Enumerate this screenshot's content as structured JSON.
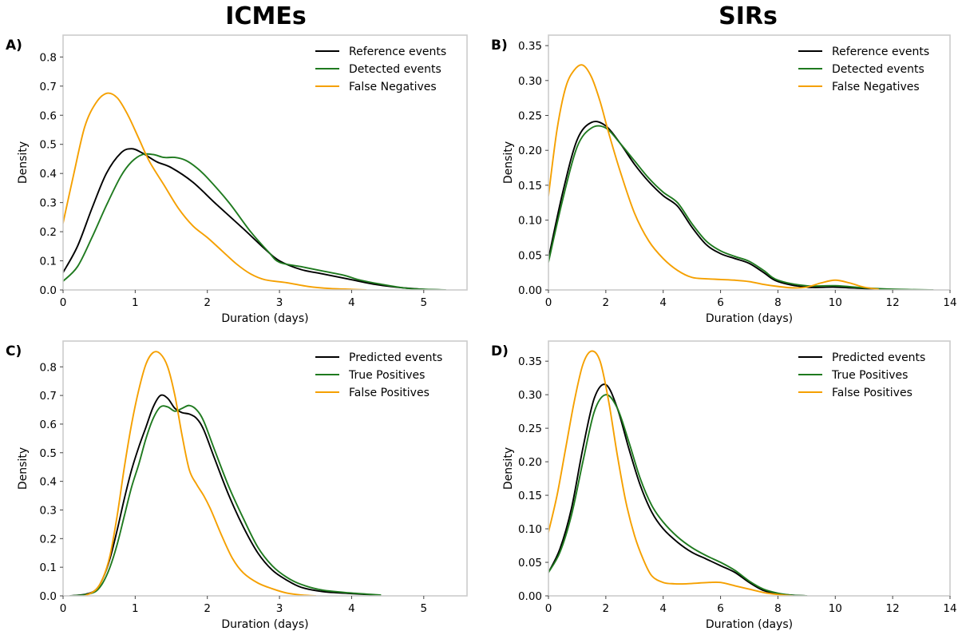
{
  "figure": {
    "column_titles": [
      "ICMEs",
      "SIRs"
    ]
  },
  "chart_data": [
    {
      "panel": "A)",
      "type": "line",
      "title": "",
      "xlabel": "Duration (days)",
      "ylabel": "Density",
      "xlim": [
        0,
        5.6
      ],
      "ylim": [
        0,
        0.875
      ],
      "xticks": [
        0,
        1,
        2,
        3,
        4,
        5
      ],
      "yticks": [
        0.0,
        0.1,
        0.2,
        0.3,
        0.4,
        0.5,
        0.6,
        0.7,
        0.8
      ],
      "ytick_decimals": 1,
      "legend_position": "top-right",
      "series": [
        {
          "name": "Reference events",
          "color": "#000000",
          "x": [
            0,
            0.2,
            0.4,
            0.6,
            0.8,
            0.95,
            1.1,
            1.3,
            1.5,
            1.8,
            2.1,
            2.5,
            2.8,
            3.0,
            3.3,
            3.6,
            4.0,
            4.3,
            4.6,
            5.0,
            5.3
          ],
          "y": [
            0.06,
            0.15,
            0.28,
            0.4,
            0.47,
            0.485,
            0.47,
            0.44,
            0.42,
            0.37,
            0.3,
            0.21,
            0.14,
            0.1,
            0.07,
            0.055,
            0.035,
            0.02,
            0.01,
            0.002,
            0.0
          ]
        },
        {
          "name": "Detected events",
          "color": "#1f7a1f",
          "x": [
            0,
            0.2,
            0.4,
            0.6,
            0.8,
            0.95,
            1.1,
            1.25,
            1.4,
            1.55,
            1.7,
            1.85,
            2.0,
            2.3,
            2.6,
            2.85,
            3.0,
            3.3,
            3.6,
            3.9,
            4.1,
            4.4,
            4.8,
            5.3
          ],
          "y": [
            0.03,
            0.08,
            0.18,
            0.29,
            0.39,
            0.44,
            0.465,
            0.465,
            0.455,
            0.455,
            0.445,
            0.42,
            0.385,
            0.3,
            0.2,
            0.13,
            0.095,
            0.08,
            0.065,
            0.05,
            0.035,
            0.02,
            0.005,
            0.0
          ]
        },
        {
          "name": "False Negatives",
          "color": "#f5a000",
          "x": [
            0,
            0.15,
            0.3,
            0.45,
            0.6,
            0.75,
            0.9,
            1.05,
            1.2,
            1.4,
            1.6,
            1.8,
            2.0,
            2.2,
            2.4,
            2.6,
            2.8,
            3.1,
            3.4,
            3.7,
            4.0,
            4.2
          ],
          "y": [
            0.23,
            0.4,
            0.56,
            0.64,
            0.675,
            0.66,
            0.6,
            0.52,
            0.44,
            0.36,
            0.28,
            0.22,
            0.18,
            0.135,
            0.09,
            0.055,
            0.035,
            0.025,
            0.012,
            0.005,
            0.002,
            0.0
          ]
        }
      ]
    },
    {
      "panel": "B)",
      "type": "line",
      "title": "",
      "xlabel": "Duration (days)",
      "ylabel": "Density",
      "xlim": [
        0,
        14
      ],
      "ylim": [
        0,
        0.365
      ],
      "xticks": [
        0,
        2,
        4,
        6,
        8,
        10,
        12,
        14
      ],
      "yticks": [
        0.0,
        0.05,
        0.1,
        0.15,
        0.2,
        0.25,
        0.3,
        0.35
      ],
      "ytick_decimals": 2,
      "legend_position": "top-right",
      "series": [
        {
          "name": "Reference events",
          "color": "#000000",
          "x": [
            0,
            0.5,
            1.0,
            1.5,
            2.0,
            2.5,
            3.0,
            3.5,
            4.0,
            4.5,
            5.0,
            5.5,
            6.0,
            6.5,
            7.0,
            7.5,
            8.0,
            9.0,
            10.0,
            11.0,
            12.0,
            13.4
          ],
          "y": [
            0.045,
            0.14,
            0.215,
            0.24,
            0.235,
            0.21,
            0.18,
            0.155,
            0.135,
            0.12,
            0.09,
            0.065,
            0.052,
            0.045,
            0.038,
            0.025,
            0.012,
            0.004,
            0.004,
            0.002,
            0.0,
            0.0
          ]
        },
        {
          "name": "Detected events",
          "color": "#1f7a1f",
          "x": [
            0,
            0.5,
            1.0,
            1.5,
            2.0,
            2.5,
            3.0,
            3.5,
            4.0,
            4.5,
            5.0,
            5.5,
            6.0,
            6.5,
            7.0,
            7.5,
            8.0,
            9.0,
            10.0,
            11.0,
            12.0,
            13.4
          ],
          "y": [
            0.04,
            0.13,
            0.205,
            0.232,
            0.232,
            0.21,
            0.185,
            0.16,
            0.14,
            0.125,
            0.095,
            0.07,
            0.056,
            0.048,
            0.041,
            0.028,
            0.014,
            0.006,
            0.006,
            0.003,
            0.001,
            0.0
          ]
        },
        {
          "name": "False Negatives",
          "color": "#f5a000",
          "x": [
            0,
            0.3,
            0.6,
            0.9,
            1.2,
            1.5,
            1.8,
            2.1,
            2.5,
            3.0,
            3.5,
            4.0,
            4.5,
            5.0,
            5.5,
            6.0,
            6.5,
            7.0,
            7.5,
            8.0,
            8.5,
            9.0,
            9.5,
            10.0,
            10.5,
            11.0,
            11.5
          ],
          "y": [
            0.135,
            0.23,
            0.29,
            0.315,
            0.322,
            0.305,
            0.27,
            0.225,
            0.17,
            0.11,
            0.07,
            0.045,
            0.028,
            0.018,
            0.016,
            0.015,
            0.014,
            0.012,
            0.008,
            0.005,
            0.003,
            0.004,
            0.01,
            0.014,
            0.01,
            0.004,
            0.001
          ]
        }
      ]
    },
    {
      "panel": "C)",
      "type": "line",
      "title": "",
      "xlabel": "Duration (days)",
      "ylabel": "Density",
      "xlim": [
        0,
        5.6
      ],
      "ylim": [
        0,
        0.89
      ],
      "xticks": [
        0,
        1,
        2,
        3,
        4,
        5
      ],
      "yticks": [
        0.0,
        0.1,
        0.2,
        0.3,
        0.4,
        0.5,
        0.6,
        0.7,
        0.8
      ],
      "ytick_decimals": 1,
      "legend_position": "top-right",
      "series": [
        {
          "name": "Predicted events",
          "color": "#000000",
          "x": [
            0.1,
            0.3,
            0.45,
            0.55,
            0.65,
            0.75,
            0.85,
            0.95,
            1.05,
            1.15,
            1.25,
            1.35,
            1.45,
            1.55,
            1.65,
            1.75,
            1.85,
            1.95,
            2.1,
            2.3,
            2.5,
            2.7,
            2.9,
            3.1,
            3.3,
            3.6,
            4.0,
            4.4
          ],
          "y": [
            0.0,
            0.005,
            0.02,
            0.06,
            0.13,
            0.23,
            0.34,
            0.44,
            0.52,
            0.59,
            0.66,
            0.7,
            0.69,
            0.655,
            0.64,
            0.635,
            0.62,
            0.58,
            0.48,
            0.35,
            0.24,
            0.15,
            0.09,
            0.055,
            0.03,
            0.015,
            0.008,
            0.002
          ]
        },
        {
          "name": "True Positives",
          "color": "#1f7a1f",
          "x": [
            0.1,
            0.3,
            0.45,
            0.55,
            0.65,
            0.75,
            0.85,
            0.95,
            1.05,
            1.15,
            1.25,
            1.35,
            1.45,
            1.55,
            1.65,
            1.75,
            1.85,
            1.95,
            2.1,
            2.3,
            2.5,
            2.7,
            2.9,
            3.1,
            3.3,
            3.6,
            4.0,
            4.4
          ],
          "y": [
            0.0,
            0.004,
            0.015,
            0.045,
            0.1,
            0.18,
            0.28,
            0.38,
            0.46,
            0.55,
            0.62,
            0.66,
            0.66,
            0.645,
            0.655,
            0.665,
            0.65,
            0.61,
            0.51,
            0.38,
            0.27,
            0.17,
            0.105,
            0.065,
            0.04,
            0.02,
            0.01,
            0.003
          ]
        },
        {
          "name": "False Positives",
          "color": "#f5a000",
          "x": [
            0.3,
            0.45,
            0.55,
            0.65,
            0.75,
            0.85,
            0.95,
            1.05,
            1.15,
            1.25,
            1.35,
            1.45,
            1.55,
            1.65,
            1.75,
            1.85,
            1.95,
            2.05,
            2.2,
            2.35,
            2.5,
            2.7,
            2.9,
            3.1,
            3.3,
            3.5
          ],
          "y": [
            0.0,
            0.02,
            0.06,
            0.14,
            0.28,
            0.45,
            0.6,
            0.72,
            0.81,
            0.85,
            0.845,
            0.8,
            0.7,
            0.56,
            0.44,
            0.39,
            0.35,
            0.3,
            0.21,
            0.13,
            0.08,
            0.045,
            0.025,
            0.01,
            0.003,
            0.0
          ]
        }
      ]
    },
    {
      "panel": "D)",
      "type": "line",
      "title": "",
      "xlabel": "Duration (days)",
      "ylabel": "Density",
      "xlim": [
        0,
        14
      ],
      "ylim": [
        0,
        0.38
      ],
      "xticks": [
        0,
        2,
        4,
        6,
        8,
        10,
        12,
        14
      ],
      "yticks": [
        0.0,
        0.05,
        0.1,
        0.15,
        0.2,
        0.25,
        0.3,
        0.35
      ],
      "ytick_decimals": 2,
      "legend_position": "top-right",
      "series": [
        {
          "name": "Predicted events",
          "color": "#000000",
          "x": [
            0,
            0.4,
            0.8,
            1.2,
            1.6,
            2.0,
            2.4,
            2.8,
            3.2,
            3.6,
            4.0,
            4.5,
            5.0,
            5.5,
            6.0,
            6.5,
            7.0,
            7.5,
            8.0,
            8.5,
            9.0
          ],
          "y": [
            0.035,
            0.07,
            0.13,
            0.22,
            0.295,
            0.315,
            0.28,
            0.22,
            0.165,
            0.125,
            0.1,
            0.08,
            0.065,
            0.055,
            0.045,
            0.035,
            0.02,
            0.008,
            0.003,
            0.001,
            0.0
          ]
        },
        {
          "name": "True Positives",
          "color": "#1f7a1f",
          "x": [
            0,
            0.4,
            0.8,
            1.2,
            1.6,
            2.0,
            2.4,
            2.8,
            3.2,
            3.6,
            4.0,
            4.5,
            5.0,
            5.5,
            6.0,
            6.5,
            7.0,
            7.5,
            8.0,
            8.5,
            9.0
          ],
          "y": [
            0.035,
            0.065,
            0.12,
            0.2,
            0.275,
            0.3,
            0.28,
            0.23,
            0.175,
            0.135,
            0.11,
            0.088,
            0.072,
            0.06,
            0.05,
            0.038,
            0.022,
            0.01,
            0.004,
            0.001,
            0.0
          ]
        },
        {
          "name": "False Positives",
          "color": "#f5a000",
          "x": [
            0,
            0.3,
            0.6,
            0.9,
            1.2,
            1.5,
            1.8,
            2.1,
            2.4,
            2.7,
            3.0,
            3.3,
            3.6,
            4.0,
            4.4,
            4.8,
            5.2,
            5.6,
            6.0,
            6.5,
            7.0,
            7.5,
            8.0,
            8.5
          ],
          "y": [
            0.095,
            0.15,
            0.22,
            0.29,
            0.345,
            0.365,
            0.35,
            0.29,
            0.21,
            0.14,
            0.09,
            0.055,
            0.03,
            0.02,
            0.018,
            0.018,
            0.019,
            0.02,
            0.02,
            0.015,
            0.01,
            0.005,
            0.002,
            0.0
          ]
        }
      ]
    }
  ]
}
